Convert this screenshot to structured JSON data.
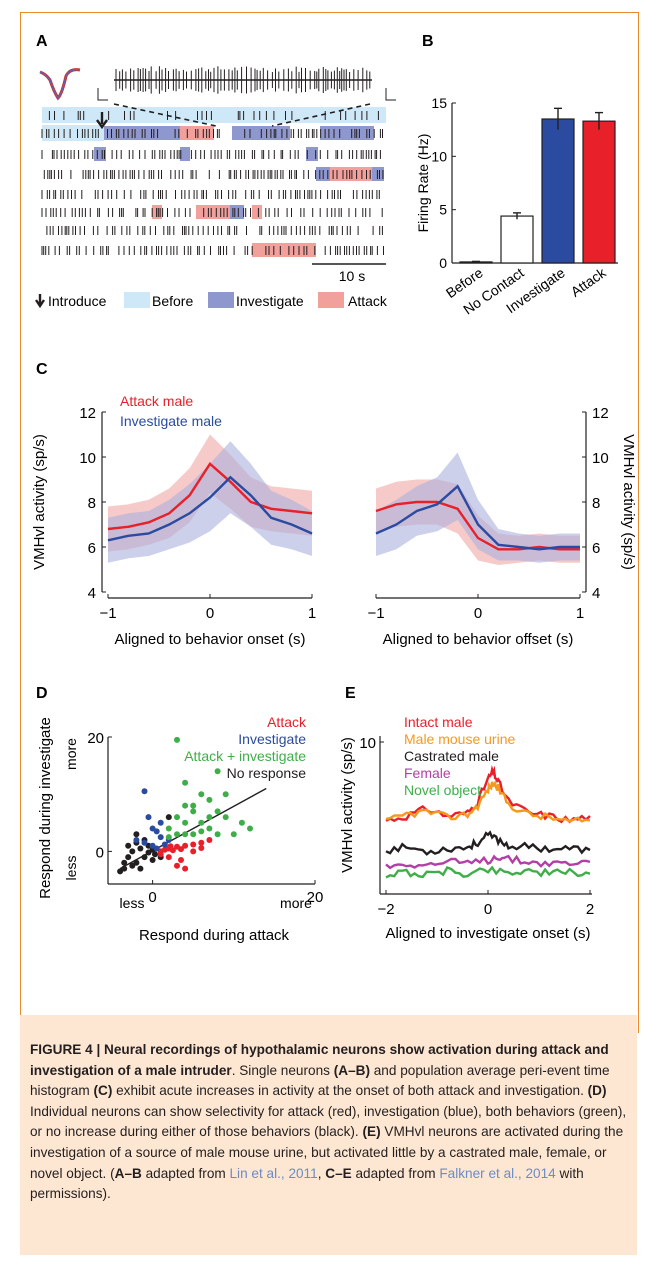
{
  "figure": {
    "panels": {
      "A": {
        "letter": "A",
        "scale_label": "10 s",
        "legend": [
          {
            "label": "Introduce",
            "icon": "down-arrow-icon"
          },
          {
            "label": "Before",
            "color": "#cfe8f7"
          },
          {
            "label": "Investigate",
            "color": "#8f97cf"
          },
          {
            "label": "Attack",
            "color": "#f2a09b"
          }
        ]
      },
      "B": {
        "letter": "B"
      },
      "C": {
        "letter": "C"
      },
      "D": {
        "letter": "D"
      },
      "E": {
        "letter": "E"
      }
    },
    "caption": {
      "heading": "FIGURE 4 | Neural recordings of hypothalamic neurons show activation during attack and investigation of a male intruder",
      "t1": ". Single neurons ",
      "b1": "(A–B)",
      "t2": " and population average peri-event time histogram ",
      "b2": "(C)",
      "t3": " exhibit acute increases in activity at the onset of both attack and investigation. ",
      "b3": "(D)",
      "t4": " Individual neurons can show selectivity for attack (red), investigation (blue), both behaviors (green), or no increase during either of those behaviors (black). ",
      "b4": "(E)",
      "t5": " VMHvl neurons are activated during the investigation of a source of male mouse urine, but activated little by a castrated male, female, or novel object. (",
      "b5": "A–B",
      "t6": " adapted from ",
      "cite1": "Lin et al., 2011",
      "t7": ", ",
      "b6": "C–E",
      "t8": " adapted from ",
      "cite2": "Falkner et al., 2014",
      "t9": " with permissions)."
    }
  },
  "chart_data": [
    {
      "panel": "B",
      "type": "bar",
      "categories": [
        "Before",
        "No Contact",
        "Investigate",
        "Attack"
      ],
      "values": [
        0.1,
        4.4,
        13.5,
        13.3
      ],
      "errors": [
        0.05,
        0.3,
        1.0,
        0.8
      ],
      "colors": [
        "#ffffff",
        "#ffffff",
        "#2b4ba0",
        "#e8202a"
      ],
      "ylabel": "Firing Rate (Hz)",
      "ylim": [
        0,
        15
      ],
      "yticks": [
        0,
        5,
        10,
        15
      ]
    },
    {
      "panel": "C-left",
      "type": "line",
      "xlabel": "Aligned to behavior onset (s)",
      "ylabel": "VMHvl activity (sp/s)",
      "ylim": [
        4,
        12
      ],
      "xlim": [
        -1,
        1
      ],
      "yticks": [
        4,
        6,
        8,
        10,
        12
      ],
      "xticks": [
        -1,
        0,
        1
      ],
      "series": [
        {
          "name": "Attack male",
          "color": "#e8202a",
          "x": [
            -1,
            -0.8,
            -0.6,
            -0.4,
            -0.2,
            0,
            0.2,
            0.4,
            0.6,
            0.8,
            1
          ],
          "y": [
            6.8,
            6.9,
            7.1,
            7.5,
            8.3,
            9.7,
            8.9,
            8.0,
            7.7,
            7.6,
            7.5
          ],
          "band": [
            1.0,
            1.0,
            1.0,
            1.1,
            1.2,
            1.3,
            1.2,
            1.1,
            1.0,
            1.0,
            1.0
          ]
        },
        {
          "name": "Investigate male",
          "color": "#2b4ba0",
          "x": [
            -1,
            -0.8,
            -0.6,
            -0.4,
            -0.2,
            0,
            0.2,
            0.4,
            0.6,
            0.8,
            1
          ],
          "y": [
            6.3,
            6.5,
            6.6,
            7.0,
            7.5,
            8.2,
            9.1,
            8.3,
            7.3,
            7.0,
            6.6
          ],
          "band": [
            1.0,
            1.0,
            1.0,
            1.1,
            1.3,
            1.5,
            1.6,
            1.4,
            1.2,
            1.1,
            1.0
          ]
        }
      ]
    },
    {
      "panel": "C-right",
      "type": "line",
      "xlabel": "Aligned to behavior offset (s)",
      "ylabel": "VMHvl activity (sp/s)",
      "ylim": [
        4,
        12
      ],
      "xlim": [
        -1,
        1
      ],
      "yticks": [
        4,
        6,
        8,
        10,
        12
      ],
      "xticks": [
        -1,
        0,
        1
      ],
      "series": [
        {
          "name": "Attack male",
          "color": "#e8202a",
          "x": [
            -1,
            -0.8,
            -0.6,
            -0.4,
            -0.2,
            0,
            0.2,
            0.4,
            0.6,
            0.8,
            1
          ],
          "y": [
            7.6,
            7.9,
            8.0,
            8.0,
            7.7,
            6.4,
            5.9,
            5.9,
            6.0,
            5.9,
            5.9
          ],
          "band": [
            1.0,
            1.0,
            1.0,
            1.0,
            1.1,
            1.0,
            0.7,
            0.6,
            0.6,
            0.6,
            0.6
          ]
        },
        {
          "name": "Investigate male",
          "color": "#2b4ba0",
          "x": [
            -1,
            -0.8,
            -0.6,
            -0.4,
            -0.2,
            0,
            0.2,
            0.4,
            0.6,
            0.8,
            1
          ],
          "y": [
            6.6,
            7.0,
            7.6,
            7.9,
            8.7,
            7.0,
            6.1,
            6.0,
            5.9,
            6.0,
            6.0
          ],
          "band": [
            1.0,
            1.1,
            1.1,
            1.2,
            1.5,
            1.1,
            0.7,
            0.6,
            0.6,
            0.6,
            0.6
          ]
        }
      ]
    },
    {
      "panel": "D",
      "type": "scatter",
      "xlabel": "Respond during attack",
      "ylabel": "Respond during investigate",
      "xlim": [
        -5,
        20
      ],
      "ylim": [
        -5,
        20
      ],
      "xticks": [
        0,
        20
      ],
      "yticks": [
        0,
        20
      ],
      "axis_words": {
        "x_low": "less",
        "x_high": "more",
        "y_low": "less",
        "y_high": "more"
      },
      "fit_line": {
        "x": [
          -4,
          14
        ],
        "y": [
          -3,
          11
        ]
      },
      "series": [
        {
          "name": "Attack",
          "color": "#e8202a",
          "points": [
            [
              1,
              0
            ],
            [
              1.5,
              0.3
            ],
            [
              2,
              0.5
            ],
            [
              2.5,
              0.2
            ],
            [
              3,
              0.8
            ],
            [
              3.5,
              0.4
            ],
            [
              4,
              1
            ],
            [
              5,
              1.2
            ],
            [
              6,
              1.5
            ],
            [
              7,
              2
            ],
            [
              2,
              -1
            ],
            [
              3,
              -2.5
            ],
            [
              4,
              -3
            ],
            [
              3.5,
              -1.5
            ],
            [
              5,
              0
            ],
            [
              1,
              -0.5
            ],
            [
              2.2,
              0.9
            ],
            [
              6,
              0.6
            ]
          ]
        },
        {
          "name": "Investigate",
          "color": "#2b4ba0",
          "points": [
            [
              -1,
              10.5
            ],
            [
              -0.5,
              6
            ],
            [
              0,
              4
            ],
            [
              0.5,
              3.5
            ],
            [
              1,
              2.5
            ],
            [
              -1,
              1.5
            ],
            [
              0,
              1
            ],
            [
              1.5,
              1.2
            ],
            [
              0.5,
              0.5
            ],
            [
              2,
              2
            ],
            [
              -2,
              2
            ],
            [
              1,
              5
            ]
          ]
        },
        {
          "name": "Attack + investigate",
          "color": "#3fae49",
          "points": [
            [
              3,
              19.5
            ],
            [
              4,
              12
            ],
            [
              5,
              7
            ],
            [
              6,
              5
            ],
            [
              7,
              9
            ],
            [
              8,
              14
            ],
            [
              8,
              7
            ],
            [
              9,
              6
            ],
            [
              10,
              3
            ],
            [
              11,
              5
            ],
            [
              4,
              5
            ],
            [
              5,
              3
            ],
            [
              6,
              3.5
            ],
            [
              3,
              3
            ],
            [
              2,
              2.5
            ],
            [
              7,
              4
            ],
            [
              9,
              10
            ],
            [
              12,
              4
            ],
            [
              5,
              8
            ],
            [
              6,
              10
            ],
            [
              4,
              8
            ],
            [
              3,
              6
            ],
            [
              7,
              6
            ],
            [
              8,
              3
            ],
            [
              2,
              4
            ],
            [
              4,
              3
            ]
          ]
        },
        {
          "name": "No response",
          "color": "#231f20",
          "points": [
            [
              -4,
              -3.5
            ],
            [
              -3.5,
              -3
            ],
            [
              -3,
              -1
            ],
            [
              -2.5,
              0
            ],
            [
              -2,
              -2
            ],
            [
              -1.5,
              0.5
            ],
            [
              -1,
              -1
            ],
            [
              -0.5,
              -0.2
            ],
            [
              0,
              0.3
            ],
            [
              0.3,
              -0.5
            ],
            [
              -2,
              1.5
            ],
            [
              -3,
              1
            ],
            [
              -1,
              2
            ],
            [
              0,
              -1.5
            ],
            [
              -2.5,
              -2.5
            ],
            [
              1,
              -1
            ],
            [
              -1.5,
              -3
            ],
            [
              -0.5,
              1
            ],
            [
              -3.5,
              -2
            ],
            [
              2,
              6
            ],
            [
              -2,
              3
            ]
          ]
        }
      ]
    },
    {
      "panel": "E",
      "type": "line",
      "xlabel": "Aligned to investigate onset (s)",
      "ylabel": "VMHvl activity (sp/s)",
      "xlim": [
        -2,
        2
      ],
      "ylim": [
        0,
        10
      ],
      "xticks": [
        -2,
        0,
        2
      ],
      "yticks": [
        10
      ],
      "series": [
        {
          "name": "Intact male",
          "color": "#e8202a",
          "x": [
            -2,
            -1.6,
            -1.2,
            -0.8,
            -0.4,
            -0.2,
            0,
            0.1,
            0.2,
            0.4,
            0.8,
            1.2,
            1.6,
            2
          ],
          "y": [
            4.7,
            5.0,
            5.5,
            5.0,
            5.2,
            6.0,
            7.5,
            8.0,
            7.3,
            6.0,
            5.2,
            5.0,
            4.7,
            5.0
          ]
        },
        {
          "name": "Male mouse urine",
          "color": "#f39a1e",
          "x": [
            -2,
            -1.6,
            -1.2,
            -0.8,
            -0.4,
            -0.2,
            0,
            0.1,
            0.2,
            0.4,
            0.8,
            1.2,
            1.6,
            2
          ],
          "y": [
            4.6,
            5.1,
            5.3,
            4.9,
            5.1,
            5.7,
            6.8,
            7.2,
            6.9,
            5.8,
            5.1,
            4.9,
            4.6,
            4.7
          ]
        },
        {
          "name": "Castrated male",
          "color": "#231f20",
          "x": [
            -2,
            -1.6,
            -1.2,
            -0.8,
            -0.4,
            -0.2,
            0,
            0.2,
            0.4,
            0.8,
            1.2,
            1.6,
            2
          ],
          "y": [
            2.7,
            2.9,
            2.6,
            2.8,
            2.9,
            3.2,
            3.7,
            3.4,
            3.0,
            2.9,
            2.8,
            2.8,
            2.7
          ]
        },
        {
          "name": "Female",
          "color": "#b13fa6",
          "x": [
            -2,
            -1.6,
            -1.2,
            -0.8,
            -0.4,
            0,
            0.2,
            0.4,
            0.8,
            1.2,
            1.6,
            2
          ],
          "y": [
            1.6,
            1.8,
            1.7,
            1.9,
            1.8,
            2.0,
            2.3,
            2.1,
            1.9,
            1.8,
            1.8,
            1.9
          ]
        },
        {
          "name": "Novel object",
          "color": "#3fae49",
          "x": [
            -2,
            -1.6,
            -1.2,
            -0.8,
            -0.4,
            0,
            0.4,
            0.8,
            1.2,
            1.6,
            2
          ],
          "y": [
            1.0,
            1.2,
            1.0,
            1.3,
            1.1,
            1.4,
            1.2,
            1.3,
            1.1,
            1.2,
            1.1
          ]
        }
      ]
    }
  ]
}
